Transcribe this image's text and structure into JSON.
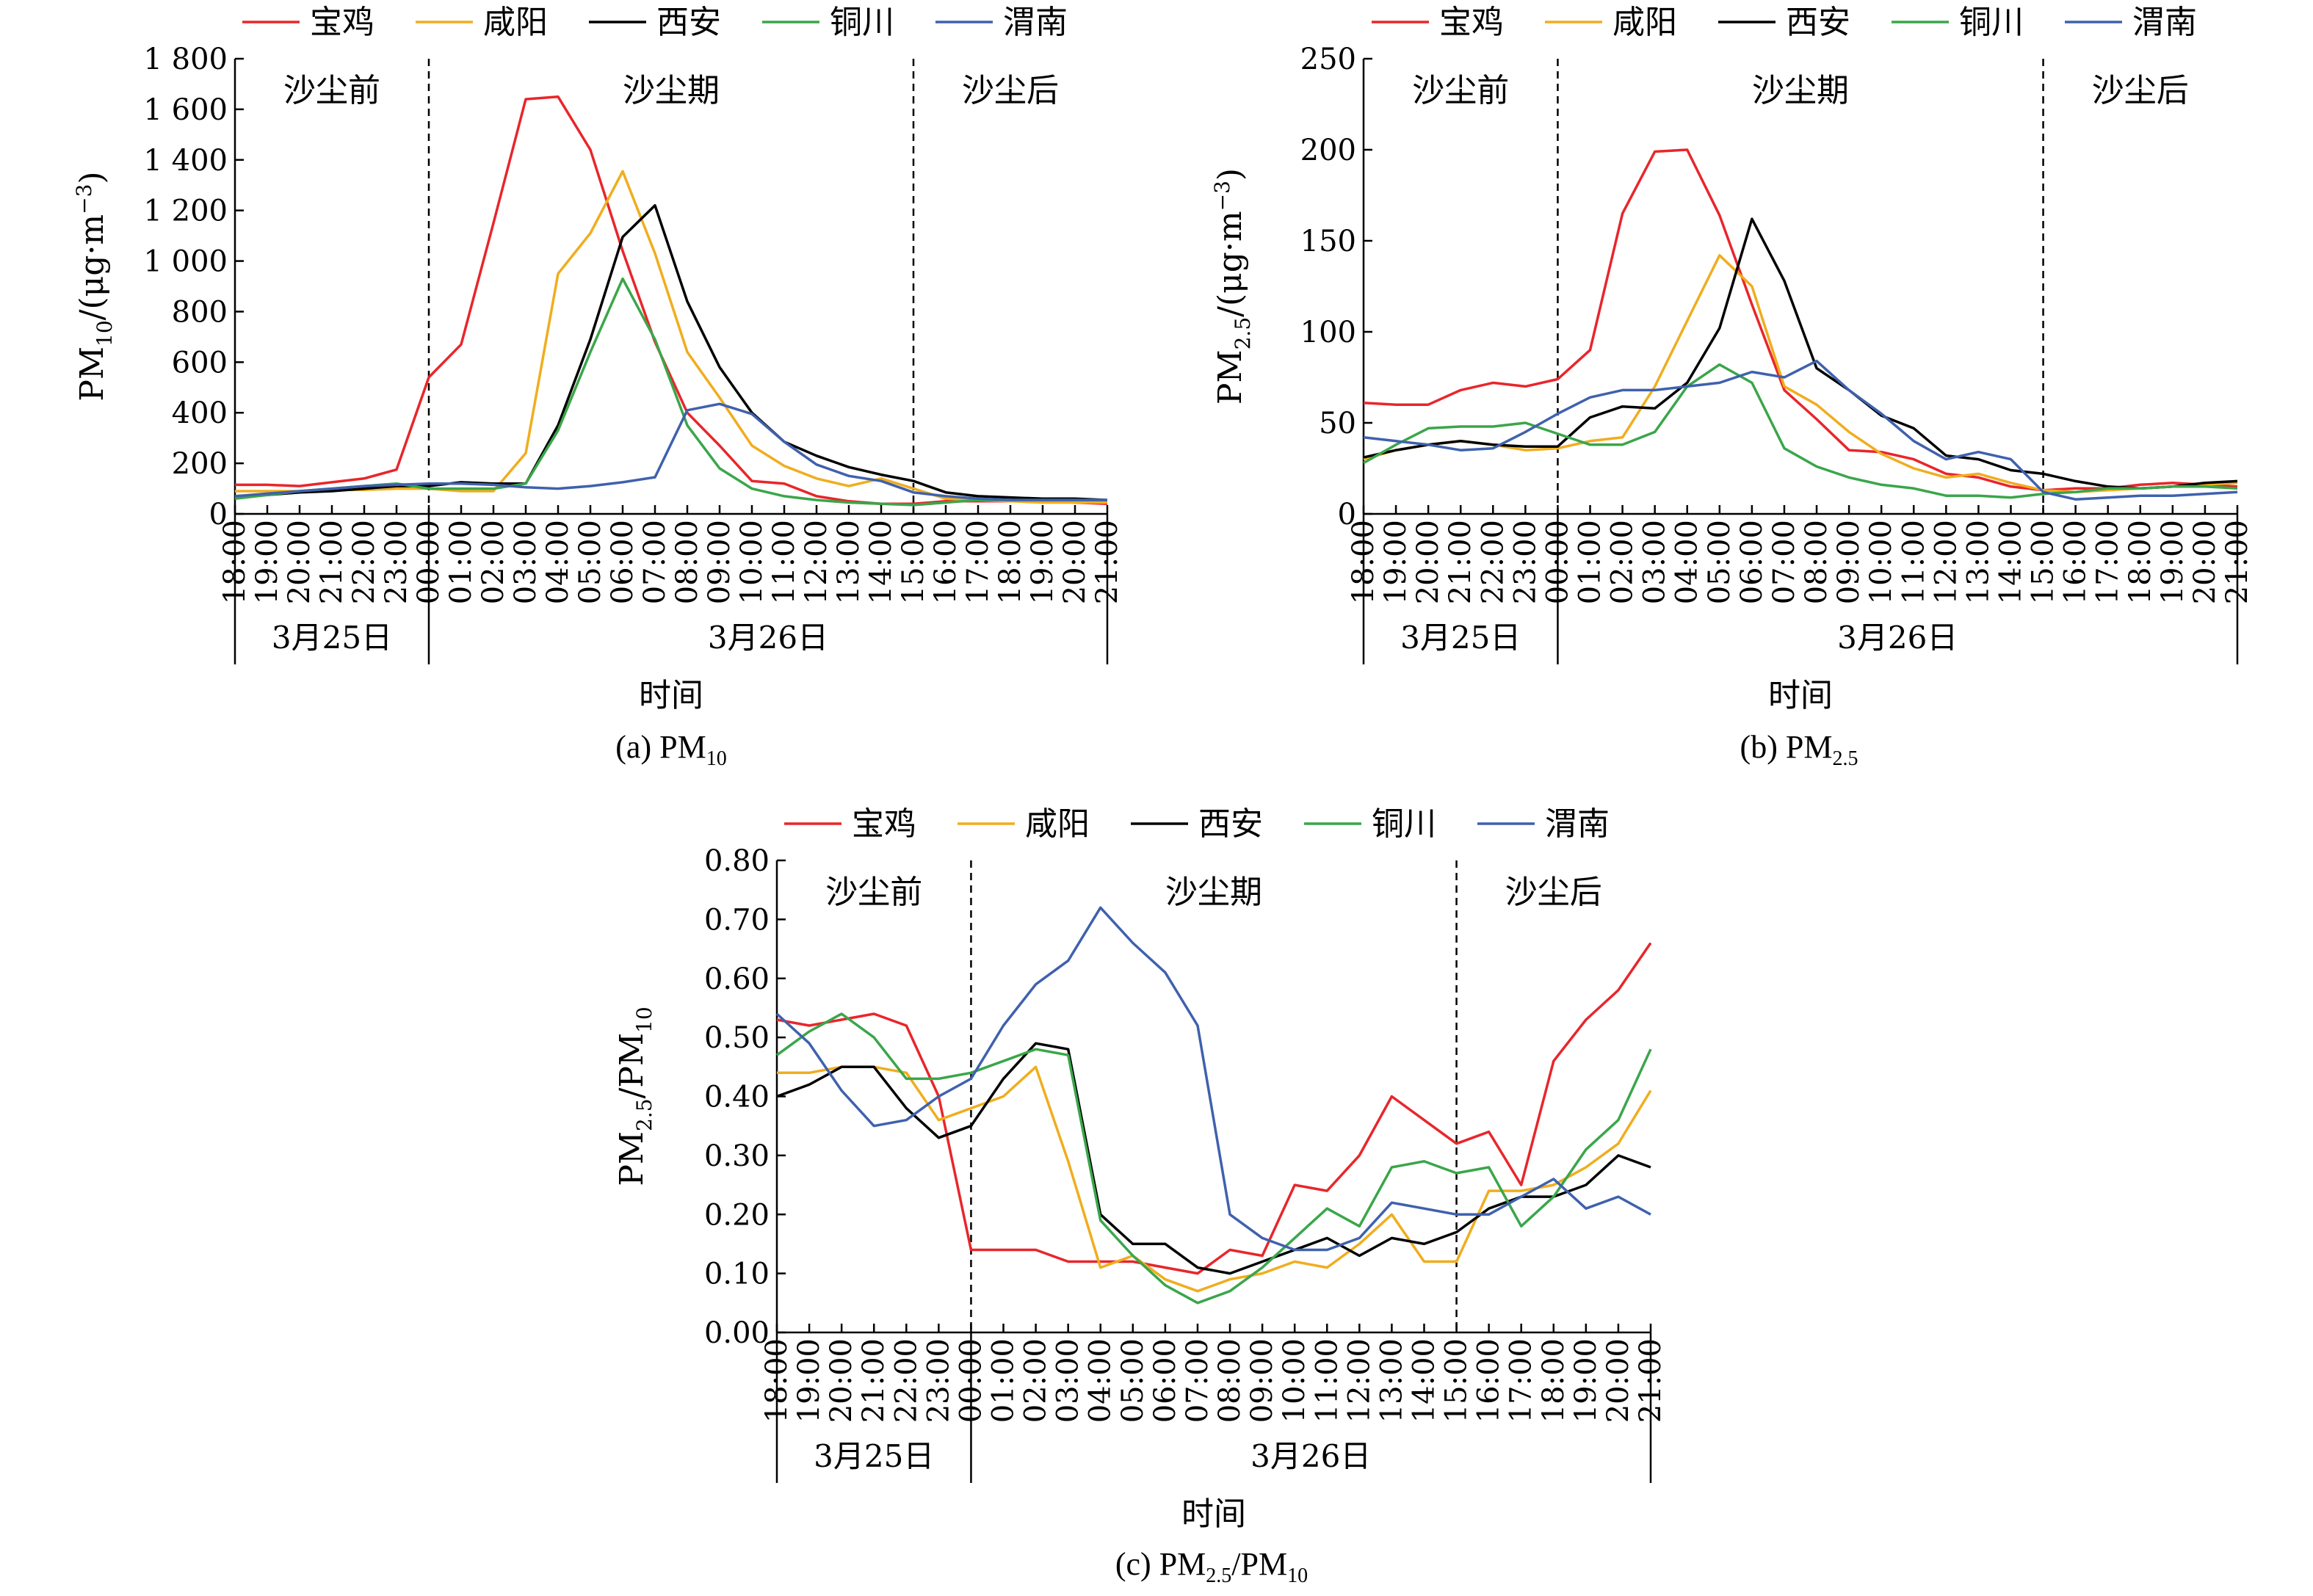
{
  "figure": {
    "xlabel": "时间",
    "dates": [
      "3月25日",
      "3月26日"
    ],
    "periods": [
      "沙尘前",
      "沙尘期",
      "沙尘后"
    ],
    "times": [
      "18:00",
      "19:00",
      "20:00",
      "21:00",
      "22:00",
      "23:00",
      "00:00",
      "01:00",
      "02:00",
      "03:00",
      "04:00",
      "05:00",
      "06:00",
      "07:00",
      "08:00",
      "09:00",
      "10:00",
      "11:00",
      "12:00",
      "13:00",
      "14:00",
      "15:00",
      "16:00",
      "17:00",
      "18:00",
      "19:00",
      "20:00",
      "21:00"
    ],
    "series_names": [
      "宝鸡",
      "咸阳",
      "西安",
      "铜川",
      "渭南"
    ],
    "colors": [
      "#e8262b",
      "#f0ad1e",
      "#000000",
      "#3aa64a",
      "#3f61ad"
    ]
  },
  "chart_data": [
    {
      "type": "line",
      "caption": "(a) PM",
      "caption_sub": "10",
      "ylabel": "PM10/(μg·m−3)",
      "ylim": [
        0,
        1800
      ],
      "yticks": [
        0,
        200,
        400,
        600,
        800,
        1000,
        1200,
        1400,
        1600,
        1800
      ],
      "ytick_labels": [
        "0",
        "200",
        "400",
        "600",
        "800",
        "1 000",
        "1 200",
        "1 400",
        "1 600",
        "1 800"
      ],
      "series": [
        {
          "name": "宝鸡",
          "values": [
            115,
            115,
            110,
            125,
            140,
            175,
            540,
            670,
            1150,
            1640,
            1650,
            1440,
            1040,
            680,
            400,
            270,
            130,
            120,
            70,
            50,
            40,
            40,
            50,
            50,
            50,
            50,
            45,
            40
          ]
        },
        {
          "name": "咸阳",
          "values": [
            90,
            90,
            90,
            95,
            95,
            100,
            100,
            90,
            90,
            240,
            950,
            1110,
            1355,
            1030,
            640,
            460,
            270,
            190,
            140,
            110,
            140,
            100,
            60,
            55,
            50,
            45,
            45,
            45
          ]
        },
        {
          "name": "西安",
          "values": [
            70,
            75,
            85,
            90,
            100,
            110,
            110,
            125,
            120,
            120,
            350,
            690,
            1095,
            1220,
            840,
            580,
            400,
            285,
            230,
            185,
            155,
            130,
            85,
            70,
            65,
            60,
            60,
            55
          ]
        },
        {
          "name": "铜川",
          "values": [
            60,
            75,
            90,
            100,
            110,
            120,
            100,
            100,
            100,
            120,
            330,
            640,
            930,
            690,
            350,
            180,
            100,
            70,
            55,
            45,
            40,
            35,
            45,
            55,
            55,
            55,
            55,
            55
          ]
        },
        {
          "name": "渭南",
          "values": [
            70,
            80,
            90,
            100,
            110,
            115,
            120,
            120,
            115,
            105,
            100,
            110,
            125,
            145,
            410,
            435,
            395,
            285,
            195,
            150,
            130,
            85,
            70,
            60,
            55,
            55,
            55,
            55
          ]
        }
      ]
    },
    {
      "type": "line",
      "caption": "(b) PM",
      "caption_sub": "2.5",
      "ylabel": "PM2.5/(μg·m−3)",
      "ylim": [
        0,
        250
      ],
      "yticks": [
        0,
        50,
        100,
        150,
        200,
        250
      ],
      "ytick_labels": [
        "0",
        "50",
        "100",
        "150",
        "200",
        "250"
      ],
      "series": [
        {
          "name": "宝鸡",
          "values": [
            61,
            60,
            60,
            68,
            72,
            70,
            74,
            90,
            165,
            199,
            200,
            164,
            115,
            68,
            52,
            35,
            34,
            30,
            22,
            20,
            15,
            13,
            14,
            14,
            16,
            17,
            16,
            15
          ]
        },
        {
          "name": "咸阳",
          "values": [
            30,
            35,
            38,
            40,
            38,
            35,
            36,
            40,
            42,
            70,
            106,
            142,
            125,
            70,
            60,
            45,
            33,
            25,
            20,
            22,
            17,
            13,
            12,
            13,
            14,
            15,
            16,
            17
          ]
        },
        {
          "name": "西安",
          "values": [
            31,
            35,
            38,
            40,
            38,
            37,
            37,
            53,
            59,
            58,
            72,
            102,
            162,
            128,
            80,
            68,
            54,
            47,
            32,
            30,
            24,
            22,
            18,
            15,
            14,
            15,
            17,
            18
          ]
        },
        {
          "name": "铜川",
          "values": [
            28,
            38,
            47,
            48,
            48,
            50,
            44,
            38,
            38,
            45,
            70,
            82,
            72,
            36,
            26,
            20,
            16,
            14,
            10,
            10,
            9,
            11,
            12,
            14,
            14,
            15,
            15,
            14
          ]
        },
        {
          "name": "渭南",
          "values": [
            42,
            40,
            38,
            35,
            36,
            45,
            55,
            64,
            68,
            68,
            70,
            72,
            78,
            75,
            84,
            68,
            55,
            40,
            30,
            34,
            30,
            12,
            8,
            9,
            10,
            10,
            11,
            12
          ]
        }
      ]
    },
    {
      "type": "line",
      "caption": "(c) PM2.5/PM10",
      "ylabel": "PM2.5/PM10",
      "ylim": [
        0,
        0.8
      ],
      "yticks": [
        0,
        0.1,
        0.2,
        0.3,
        0.4,
        0.5,
        0.6,
        0.7,
        0.8
      ],
      "ytick_labels": [
        "0.00",
        "0.10",
        "0.20",
        "0.30",
        "0.40",
        "0.50",
        "0.60",
        "0.70",
        "0.80"
      ],
      "series": [
        {
          "name": "宝鸡",
          "values": [
            0.53,
            0.52,
            0.53,
            0.54,
            0.52,
            0.4,
            0.14,
            0.14,
            0.14,
            0.12,
            0.12,
            0.12,
            0.11,
            0.1,
            0.14,
            0.13,
            0.25,
            0.24,
            0.3,
            0.4,
            0.36,
            0.32,
            0.34,
            0.25,
            0.46,
            0.53,
            0.58,
            0.66
          ]
        },
        {
          "name": "咸阳",
          "values": [
            0.44,
            0.44,
            0.45,
            0.45,
            0.44,
            0.36,
            0.38,
            0.4,
            0.45,
            0.29,
            0.11,
            0.13,
            0.09,
            0.07,
            0.09,
            0.1,
            0.12,
            0.11,
            0.15,
            0.2,
            0.12,
            0.12,
            0.24,
            0.24,
            0.25,
            0.28,
            0.32,
            0.41
          ]
        },
        {
          "name": "西安",
          "values": [
            0.4,
            0.42,
            0.45,
            0.45,
            0.38,
            0.33,
            0.35,
            0.43,
            0.49,
            0.48,
            0.2,
            0.15,
            0.15,
            0.11,
            0.1,
            0.12,
            0.14,
            0.16,
            0.13,
            0.16,
            0.15,
            0.17,
            0.21,
            0.23,
            0.23,
            0.25,
            0.3,
            0.28
          ]
        },
        {
          "name": "铜川",
          "values": [
            0.47,
            0.51,
            0.54,
            0.5,
            0.43,
            0.43,
            0.44,
            0.46,
            0.48,
            0.47,
            0.19,
            0.13,
            0.08,
            0.05,
            0.07,
            0.11,
            0.16,
            0.21,
            0.18,
            0.28,
            0.29,
            0.27,
            0.28,
            0.18,
            0.23,
            0.31,
            0.36,
            0.48
          ]
        },
        {
          "name": "渭南",
          "values": [
            0.54,
            0.49,
            0.41,
            0.35,
            0.36,
            0.4,
            0.43,
            0.52,
            0.59,
            0.63,
            0.72,
            0.66,
            0.61,
            0.52,
            0.2,
            0.16,
            0.14,
            0.14,
            0.16,
            0.22,
            0.21,
            0.2,
            0.2,
            0.23,
            0.26,
            0.21,
            0.23,
            0.2
          ]
        }
      ]
    }
  ]
}
